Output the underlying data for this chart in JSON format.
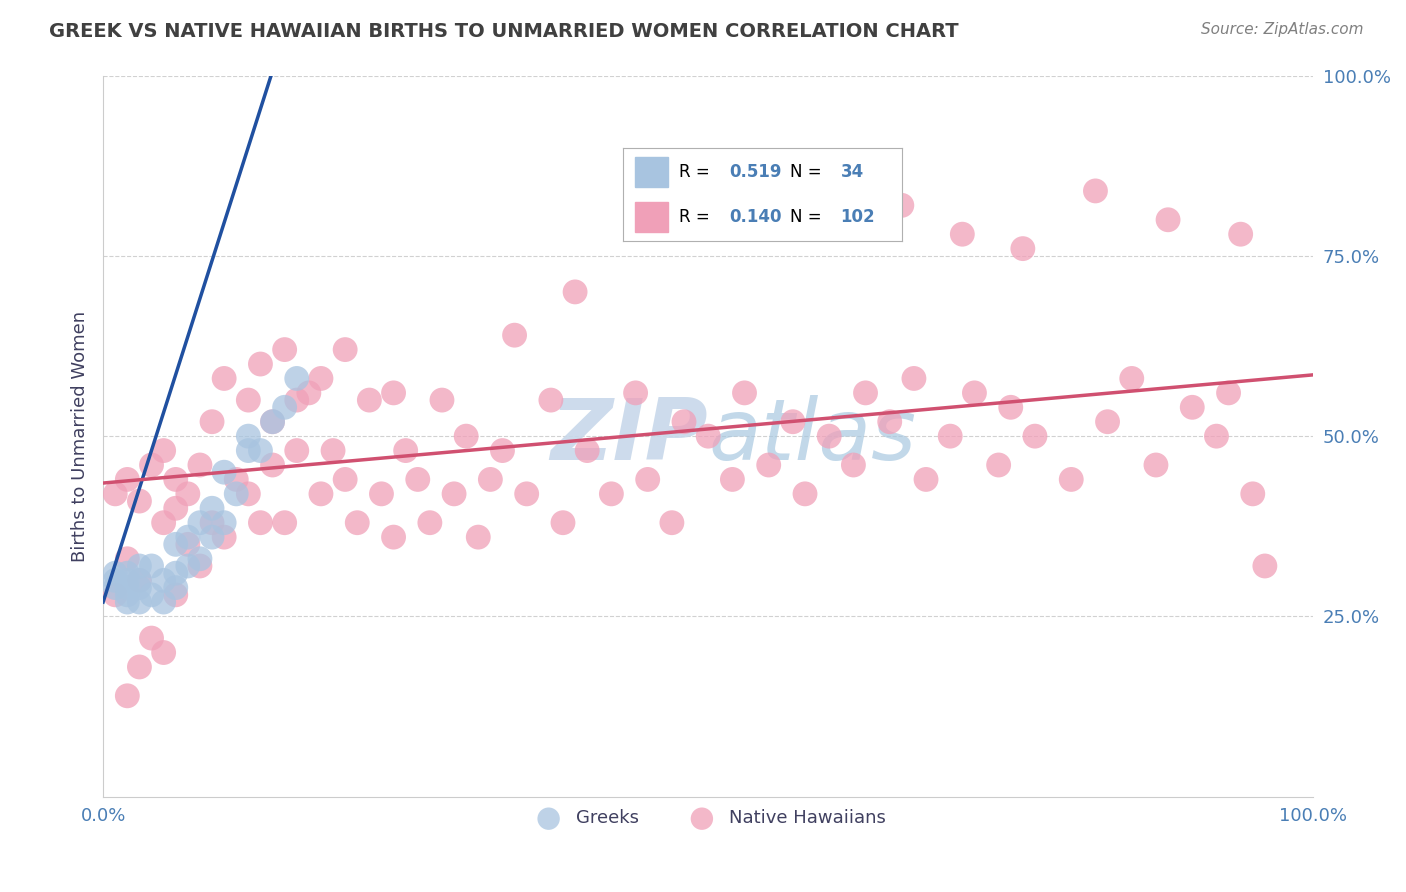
{
  "title": "GREEK VS NATIVE HAWAIIAN BIRTHS TO UNMARRIED WOMEN CORRELATION CHART",
  "source": "Source: ZipAtlas.com",
  "ylabel": "Births to Unmarried Women",
  "xlim": [
    0.0,
    1.0
  ],
  "ylim": [
    0.0,
    1.0
  ],
  "greek_R": 0.519,
  "greek_N": 34,
  "hawaiian_R": 0.14,
  "hawaiian_N": 102,
  "greek_color": "#a8c4e0",
  "hawaiian_color": "#f0a0b8",
  "trendline_greek_color": "#2050a0",
  "trendline_hawaiian_color": "#d05070",
  "watermark_color": "#c8d8ea",
  "background_color": "#ffffff",
  "grid_color": "#cccccc",
  "title_color": "#404040",
  "axis_tick_color": "#4a7eb5",
  "greek_x": [
    0.01,
    0.01,
    0.01,
    0.02,
    0.02,
    0.02,
    0.02,
    0.02,
    0.03,
    0.03,
    0.03,
    0.03,
    0.04,
    0.04,
    0.05,
    0.05,
    0.06,
    0.06,
    0.06,
    0.07,
    0.07,
    0.08,
    0.08,
    0.09,
    0.09,
    0.1,
    0.1,
    0.11,
    0.12,
    0.12,
    0.13,
    0.14,
    0.15,
    0.16
  ],
  "greek_y": [
    0.29,
    0.3,
    0.31,
    0.27,
    0.28,
    0.29,
    0.3,
    0.31,
    0.27,
    0.29,
    0.3,
    0.32,
    0.28,
    0.32,
    0.27,
    0.3,
    0.29,
    0.31,
    0.35,
    0.32,
    0.36,
    0.33,
    0.38,
    0.36,
    0.4,
    0.38,
    0.45,
    0.42,
    0.48,
    0.5,
    0.48,
    0.52,
    0.54,
    0.58
  ],
  "hawaiian_x": [
    0.01,
    0.01,
    0.02,
    0.02,
    0.02,
    0.03,
    0.03,
    0.03,
    0.04,
    0.04,
    0.05,
    0.05,
    0.05,
    0.06,
    0.06,
    0.06,
    0.07,
    0.07,
    0.08,
    0.08,
    0.09,
    0.09,
    0.1,
    0.1,
    0.11,
    0.12,
    0.12,
    0.13,
    0.13,
    0.14,
    0.14,
    0.15,
    0.15,
    0.16,
    0.16,
    0.17,
    0.18,
    0.18,
    0.19,
    0.2,
    0.2,
    0.21,
    0.22,
    0.23,
    0.24,
    0.24,
    0.25,
    0.26,
    0.27,
    0.28,
    0.29,
    0.3,
    0.31,
    0.32,
    0.33,
    0.35,
    0.37,
    0.38,
    0.4,
    0.42,
    0.44,
    0.45,
    0.47,
    0.48,
    0.5,
    0.52,
    0.53,
    0.55,
    0.57,
    0.58,
    0.6,
    0.62,
    0.63,
    0.65,
    0.67,
    0.68,
    0.7,
    0.72,
    0.74,
    0.75,
    0.77,
    0.8,
    0.83,
    0.85,
    0.87,
    0.9,
    0.92,
    0.93,
    0.95,
    0.96,
    0.34,
    0.39,
    0.46,
    0.51,
    0.56,
    0.61,
    0.66,
    0.71,
    0.76,
    0.82,
    0.88,
    0.94
  ],
  "hawaiian_y": [
    0.42,
    0.28,
    0.33,
    0.44,
    0.14,
    0.41,
    0.3,
    0.18,
    0.46,
    0.22,
    0.38,
    0.48,
    0.2,
    0.44,
    0.28,
    0.4,
    0.35,
    0.42,
    0.32,
    0.46,
    0.38,
    0.52,
    0.36,
    0.58,
    0.44,
    0.42,
    0.55,
    0.38,
    0.6,
    0.46,
    0.52,
    0.38,
    0.62,
    0.48,
    0.55,
    0.56,
    0.42,
    0.58,
    0.48,
    0.44,
    0.62,
    0.38,
    0.55,
    0.42,
    0.56,
    0.36,
    0.48,
    0.44,
    0.38,
    0.55,
    0.42,
    0.5,
    0.36,
    0.44,
    0.48,
    0.42,
    0.55,
    0.38,
    0.48,
    0.42,
    0.56,
    0.44,
    0.38,
    0.52,
    0.5,
    0.44,
    0.56,
    0.46,
    0.52,
    0.42,
    0.5,
    0.46,
    0.56,
    0.52,
    0.58,
    0.44,
    0.5,
    0.56,
    0.46,
    0.54,
    0.5,
    0.44,
    0.52,
    0.58,
    0.46,
    0.54,
    0.5,
    0.56,
    0.42,
    0.32,
    0.64,
    0.7,
    0.8,
    0.82,
    0.84,
    0.86,
    0.82,
    0.78,
    0.76,
    0.84,
    0.8,
    0.78
  ]
}
